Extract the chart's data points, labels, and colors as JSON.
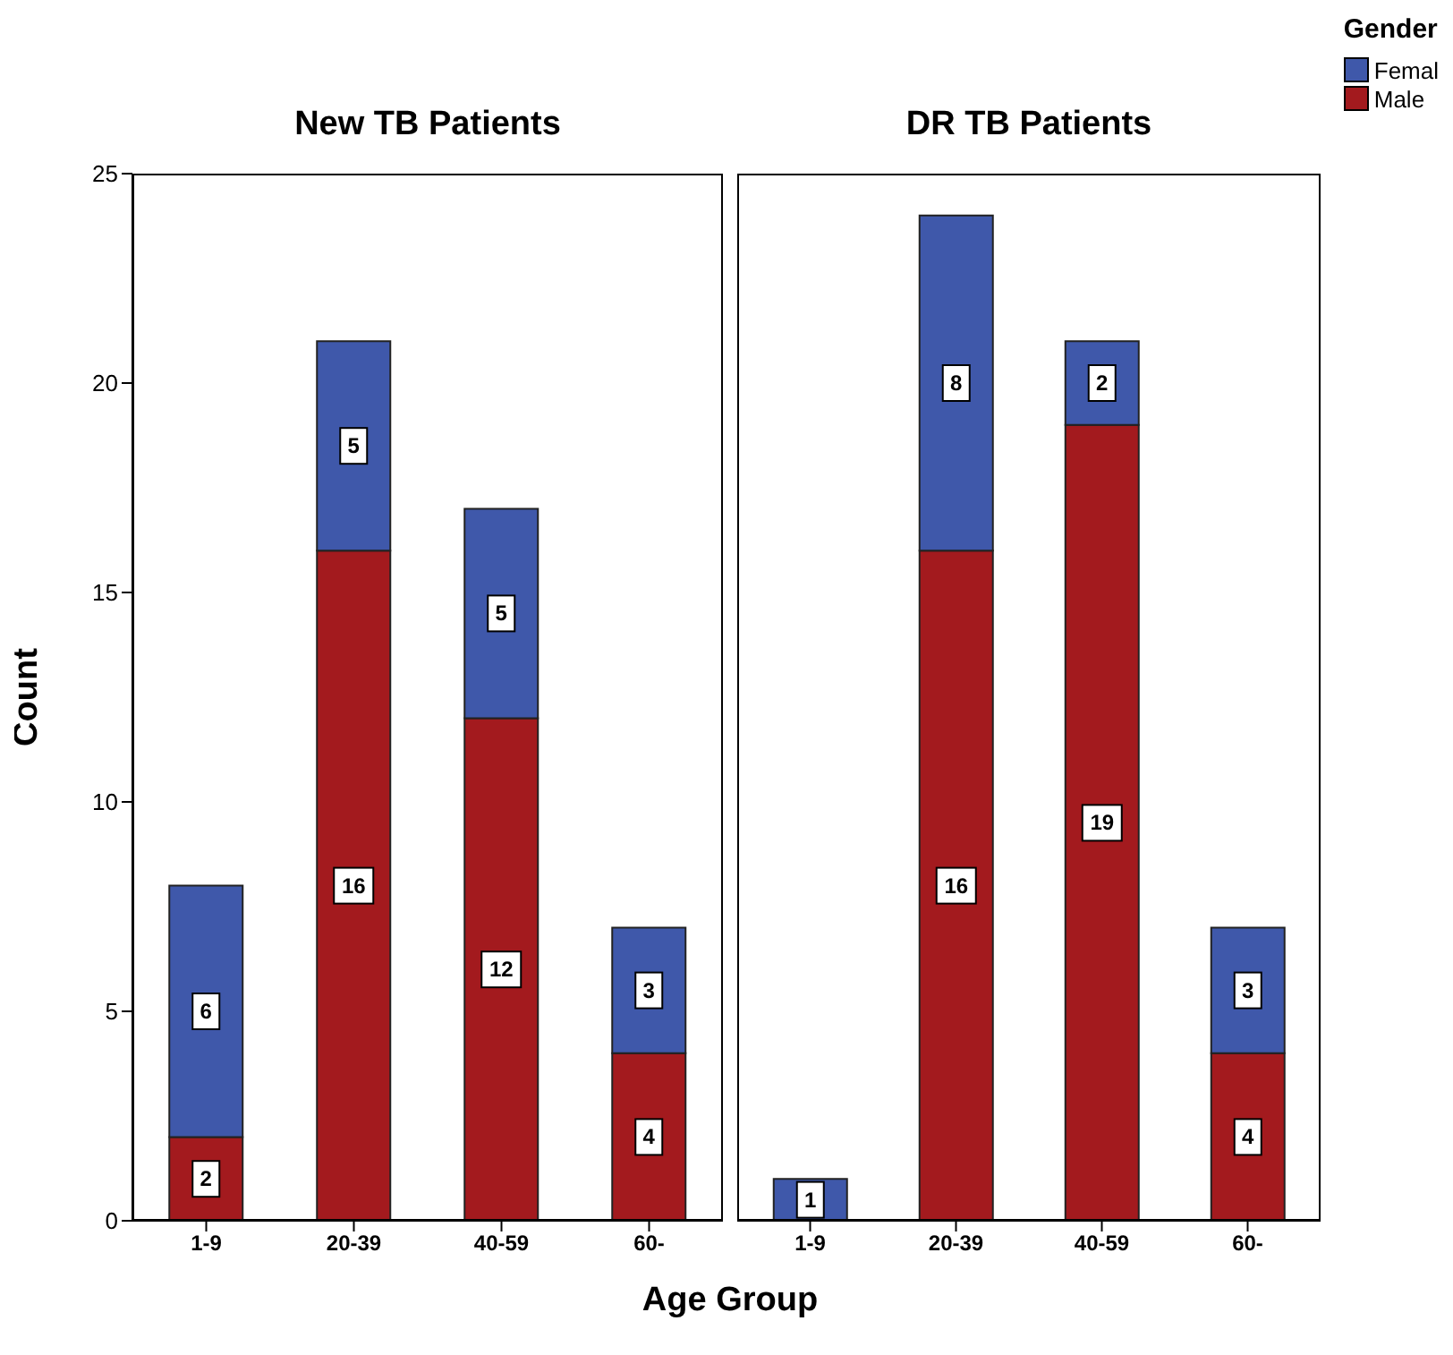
{
  "chart_data": [
    {
      "type": "bar",
      "title": "New TB Patients",
      "ylabel": "Count",
      "xlabel": "Age Group",
      "categories": [
        "1-9",
        "20-39",
        "40-59",
        "60-"
      ],
      "stacked": true,
      "data_labels": true,
      "ylim": [
        0,
        25
      ],
      "yticks": [
        0,
        5,
        10,
        15,
        20,
        25
      ],
      "grid": false,
      "legend": "top right",
      "legend_title": "Gender",
      "series": [
        {
          "name": "Male",
          "color": "#a31a1e",
          "values": [
            2,
            16,
            12,
            4
          ]
        },
        {
          "name": "Femal",
          "color": "#3f58aa",
          "values": [
            6,
            5,
            5,
            3
          ]
        }
      ]
    },
    {
      "type": "bar",
      "title": "DR TB Patients",
      "categories": [
        "1-9",
        "20-39",
        "40-59",
        "60-"
      ],
      "stacked": true,
      "data_labels": true,
      "ylim": [
        0,
        25
      ],
      "yticks": [
        0,
        5,
        10,
        15,
        20,
        25
      ],
      "grid": false,
      "tick_labels": "x",
      "series": [
        {
          "color": "#a31a1e",
          "values": [
            null,
            16,
            19,
            4
          ]
        },
        {
          "color": "#3f58aa",
          "values": [
            1,
            8,
            2,
            3
          ]
        }
      ]
    }
  ]
}
